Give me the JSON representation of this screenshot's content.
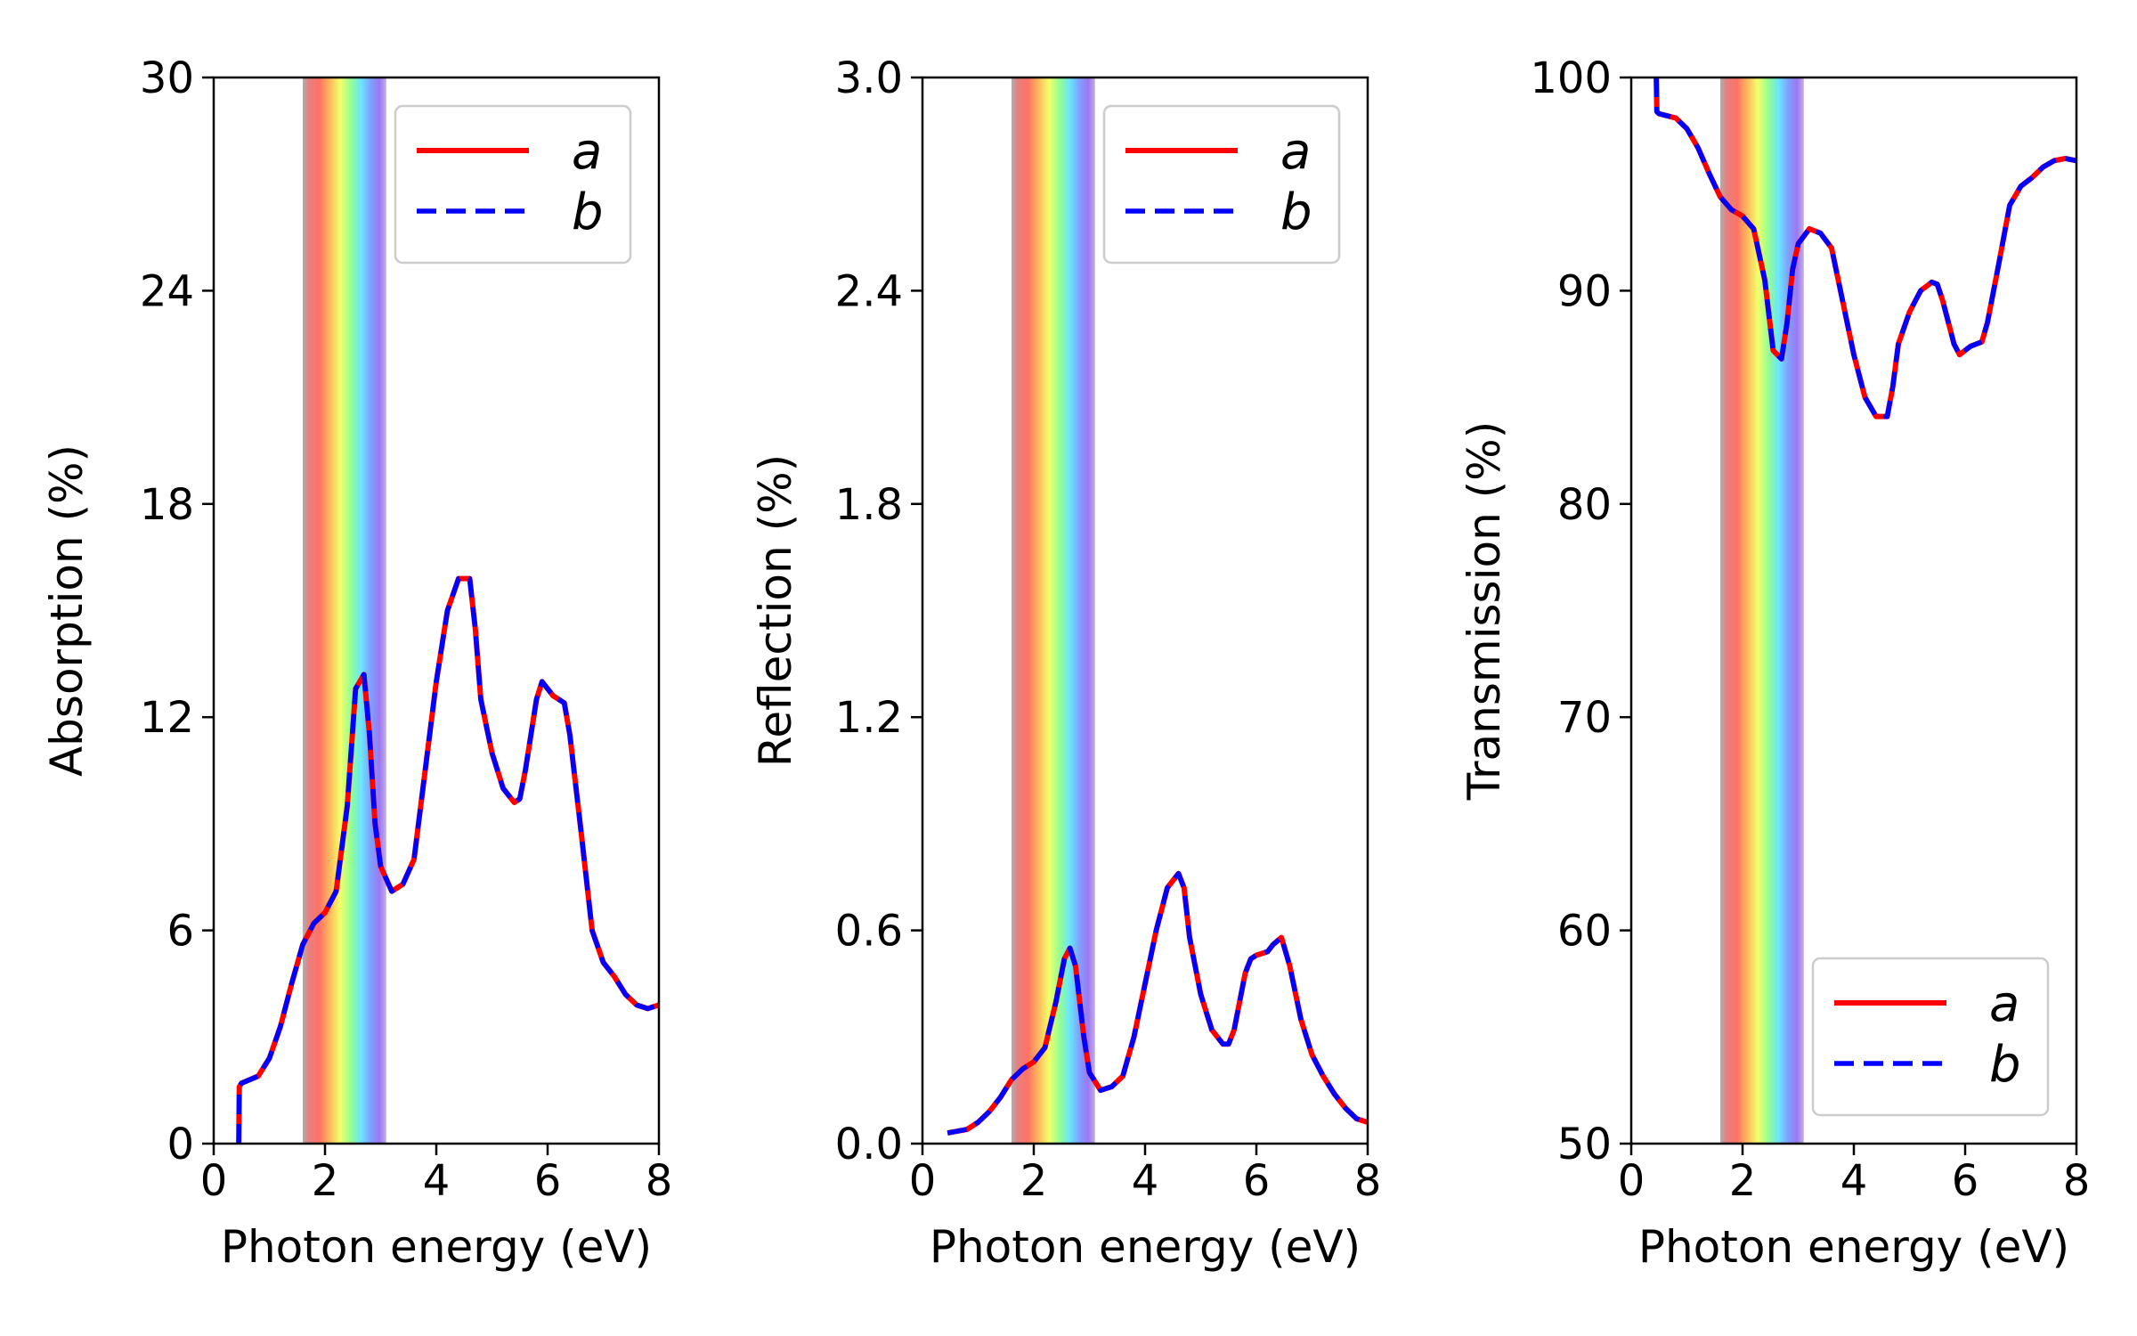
{
  "chart_data": [
    {
      "type": "line",
      "title": "",
      "xlabel": "Photon energy (eV)",
      "ylabel": "Absorption (%)",
      "xlim": [
        0,
        8
      ],
      "ylim": [
        0,
        30
      ],
      "xticks": [
        "0",
        "2",
        "4",
        "6",
        "8"
      ],
      "yticks": [
        "0",
        "6",
        "12",
        "18",
        "24",
        "30"
      ],
      "grid": false,
      "legend_position": "top-right",
      "visible_band_eV": [
        1.6,
        3.1
      ],
      "x": [
        0.45,
        0.46,
        0.5,
        0.8,
        1.0,
        1.2,
        1.4,
        1.6,
        1.8,
        2.0,
        2.2,
        2.4,
        2.55,
        2.7,
        2.8,
        2.9,
        3.0,
        3.2,
        3.4,
        3.6,
        3.8,
        4.0,
        4.2,
        4.4,
        4.6,
        4.7,
        4.8,
        5.0,
        5.2,
        5.4,
        5.5,
        5.6,
        5.8,
        5.9,
        6.0,
        6.1,
        6.2,
        6.3,
        6.4,
        6.6,
        6.8,
        7.0,
        7.2,
        7.4,
        7.6,
        7.8,
        8.0
      ],
      "series": [
        {
          "name": "a",
          "color": "#ff0000",
          "style": "solid",
          "values": [
            0.0,
            1.6,
            1.7,
            1.9,
            2.4,
            3.3,
            4.5,
            5.6,
            6.2,
            6.5,
            7.1,
            9.5,
            12.8,
            13.2,
            11.5,
            9.0,
            7.8,
            7.1,
            7.3,
            8.0,
            10.5,
            13.0,
            15.0,
            15.9,
            15.9,
            14.5,
            12.5,
            11.0,
            10.0,
            9.6,
            9.7,
            10.5,
            12.5,
            13.0,
            12.8,
            12.6,
            12.5,
            12.4,
            11.5,
            8.8,
            6.0,
            5.1,
            4.7,
            4.2,
            3.9,
            3.8,
            3.9
          ]
        },
        {
          "name": "b",
          "color": "#0000ff",
          "style": "dashed",
          "values": [
            0.0,
            1.6,
            1.7,
            1.9,
            2.4,
            3.3,
            4.5,
            5.6,
            6.2,
            6.5,
            7.1,
            9.5,
            12.8,
            13.2,
            11.5,
            9.0,
            7.8,
            7.1,
            7.3,
            8.0,
            10.5,
            13.0,
            15.0,
            15.9,
            15.9,
            14.5,
            12.5,
            11.0,
            10.0,
            9.6,
            9.7,
            10.5,
            12.5,
            13.0,
            12.8,
            12.6,
            12.5,
            12.4,
            11.5,
            8.8,
            6.0,
            5.1,
            4.7,
            4.2,
            3.9,
            3.8,
            3.9
          ]
        }
      ]
    },
    {
      "type": "line",
      "title": "",
      "xlabel": "Photon energy (eV)",
      "ylabel": "Reflection (%)",
      "xlim": [
        0,
        8
      ],
      "ylim": [
        0,
        3.0
      ],
      "xticks": [
        "0",
        "2",
        "4",
        "6",
        "8"
      ],
      "yticks": [
        "0.0",
        "0.6",
        "1.2",
        "1.8",
        "2.4",
        "3.0"
      ],
      "grid": false,
      "legend_position": "top-right",
      "visible_band_eV": [
        1.6,
        3.1
      ],
      "x": [
        0.45,
        0.8,
        1.0,
        1.2,
        1.4,
        1.6,
        1.8,
        2.0,
        2.2,
        2.4,
        2.55,
        2.65,
        2.75,
        2.9,
        3.0,
        3.2,
        3.4,
        3.6,
        3.8,
        4.0,
        4.2,
        4.4,
        4.6,
        4.7,
        4.8,
        5.0,
        5.2,
        5.4,
        5.5,
        5.6,
        5.8,
        5.9,
        6.0,
        6.2,
        6.3,
        6.45,
        6.6,
        6.8,
        7.0,
        7.2,
        7.4,
        7.6,
        7.8,
        8.0
      ],
      "series": [
        {
          "name": "a",
          "color": "#ff0000",
          "style": "solid",
          "values": [
            0.03,
            0.04,
            0.06,
            0.09,
            0.13,
            0.18,
            0.21,
            0.23,
            0.27,
            0.4,
            0.52,
            0.55,
            0.5,
            0.3,
            0.2,
            0.15,
            0.16,
            0.19,
            0.3,
            0.45,
            0.6,
            0.72,
            0.76,
            0.72,
            0.58,
            0.42,
            0.32,
            0.28,
            0.28,
            0.32,
            0.48,
            0.52,
            0.53,
            0.54,
            0.56,
            0.58,
            0.5,
            0.35,
            0.25,
            0.19,
            0.14,
            0.1,
            0.07,
            0.06
          ]
        },
        {
          "name": "b",
          "color": "#0000ff",
          "style": "dashed",
          "values": [
            0.03,
            0.04,
            0.06,
            0.09,
            0.13,
            0.18,
            0.21,
            0.23,
            0.27,
            0.4,
            0.52,
            0.55,
            0.5,
            0.3,
            0.2,
            0.15,
            0.16,
            0.19,
            0.3,
            0.45,
            0.6,
            0.72,
            0.76,
            0.72,
            0.58,
            0.42,
            0.32,
            0.28,
            0.28,
            0.32,
            0.48,
            0.52,
            0.53,
            0.54,
            0.56,
            0.58,
            0.5,
            0.35,
            0.25,
            0.19,
            0.14,
            0.1,
            0.07,
            0.06
          ]
        }
      ]
    },
    {
      "type": "line",
      "title": "",
      "xlabel": "Photon energy (eV)",
      "ylabel": "Transmission (%)",
      "xlim": [
        0,
        8
      ],
      "ylim": [
        50,
        100
      ],
      "xticks": [
        "0",
        "2",
        "4",
        "6",
        "8"
      ],
      "yticks": [
        "50",
        "60",
        "70",
        "80",
        "90",
        "100"
      ],
      "grid": false,
      "legend_position": "bottom-right",
      "visible_band_eV": [
        1.6,
        3.1
      ],
      "x": [
        0.45,
        0.46,
        0.5,
        0.8,
        1.0,
        1.2,
        1.4,
        1.6,
        1.8,
        2.0,
        2.2,
        2.4,
        2.55,
        2.7,
        2.8,
        2.9,
        3.0,
        3.2,
        3.4,
        3.6,
        3.8,
        4.0,
        4.2,
        4.4,
        4.6,
        4.7,
        4.8,
        5.0,
        5.2,
        5.4,
        5.5,
        5.6,
        5.8,
        5.9,
        6.0,
        6.1,
        6.2,
        6.3,
        6.4,
        6.6,
        6.8,
        7.0,
        7.2,
        7.4,
        7.6,
        7.8,
        8.0
      ],
      "series": [
        {
          "name": "a",
          "color": "#ff0000",
          "style": "solid",
          "values": [
            100.0,
            98.4,
            98.3,
            98.1,
            97.6,
            96.7,
            95.5,
            94.4,
            93.8,
            93.5,
            92.9,
            90.5,
            87.2,
            86.8,
            88.5,
            91.0,
            92.2,
            92.9,
            92.7,
            92.0,
            89.5,
            87.0,
            85.0,
            84.1,
            84.1,
            85.5,
            87.5,
            89.0,
            90.0,
            90.4,
            90.3,
            89.5,
            87.5,
            87.0,
            87.2,
            87.4,
            87.5,
            87.6,
            88.5,
            91.2,
            94.0,
            94.9,
            95.3,
            95.8,
            96.1,
            96.2,
            96.1
          ]
        },
        {
          "name": "b",
          "color": "#0000ff",
          "style": "dashed",
          "values": [
            100.0,
            98.4,
            98.3,
            98.1,
            97.6,
            96.7,
            95.5,
            94.4,
            93.8,
            93.5,
            92.9,
            90.5,
            87.2,
            86.8,
            88.5,
            91.0,
            92.2,
            92.9,
            92.7,
            92.0,
            89.5,
            87.0,
            85.0,
            84.1,
            84.1,
            85.5,
            87.5,
            89.0,
            90.0,
            90.4,
            90.3,
            89.5,
            87.5,
            87.0,
            87.2,
            87.4,
            87.5,
            87.6,
            88.5,
            91.2,
            94.0,
            94.9,
            95.3,
            95.8,
            96.1,
            96.2,
            96.1
          ]
        }
      ]
    }
  ]
}
